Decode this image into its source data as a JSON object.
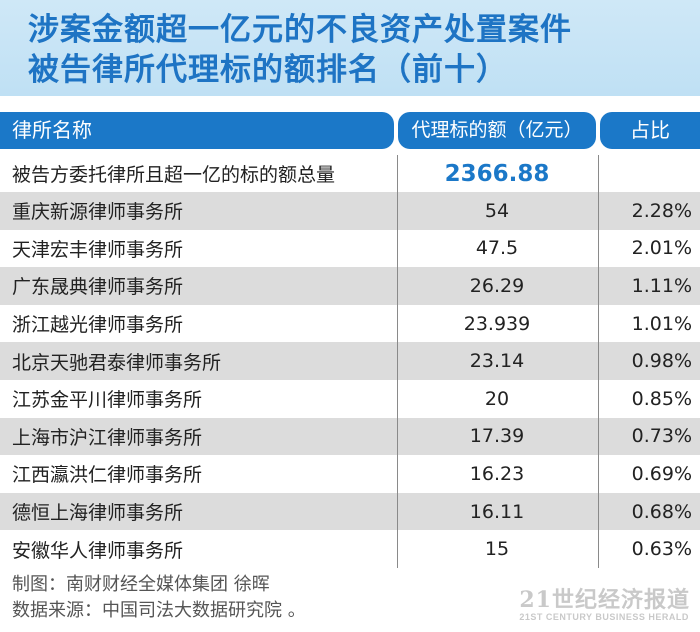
{
  "title": {
    "line1": "涉案金额超一亿元的不良资产处置案件",
    "line2": "被告律所代理标的额排名（前十）"
  },
  "table": {
    "headers": {
      "name": "律所名称",
      "amount": "代理标的额（亿元）",
      "ratio": "占比"
    },
    "total": {
      "label": "被告方委托律所且超一亿的标的额总量",
      "value": "2366.88"
    },
    "rows": [
      {
        "name": "重庆新源律师事务所",
        "amount": "54",
        "ratio": "2.28%"
      },
      {
        "name": "天津宏丰律师事务所",
        "amount": "47.5",
        "ratio": "2.01%"
      },
      {
        "name": "广东晟典律师事务所",
        "amount": "26.29",
        "ratio": "1.11%"
      },
      {
        "name": "浙江越光律师事务所",
        "amount": "23.939",
        "ratio": "1.01%"
      },
      {
        "name": "北京天驰君泰律师事务所",
        "amount": "23.14",
        "ratio": "0.98%"
      },
      {
        "name": "江苏金平川律师事务所",
        "amount": "20",
        "ratio": "0.85%"
      },
      {
        "name": "上海市沪江律师事务所",
        "amount": "17.39",
        "ratio": "0.73%"
      },
      {
        "name": "江西瀛洪仁律师事务所",
        "amount": "16.23",
        "ratio": "0.69%"
      },
      {
        "name": "德恒上海律师事务所",
        "amount": "16.11",
        "ratio": "0.68%"
      },
      {
        "name": "安徽华人律师事务所",
        "amount": "15",
        "ratio": "0.63%"
      }
    ]
  },
  "footer": {
    "credit": "制图：南财财经全媒体集团 徐晖",
    "source": "数据来源：中国司法大数据研究院 。"
  },
  "watermark": {
    "main": "21世纪经济报道",
    "sub": "21ST CENTURY BUSINESS HERALD"
  }
}
